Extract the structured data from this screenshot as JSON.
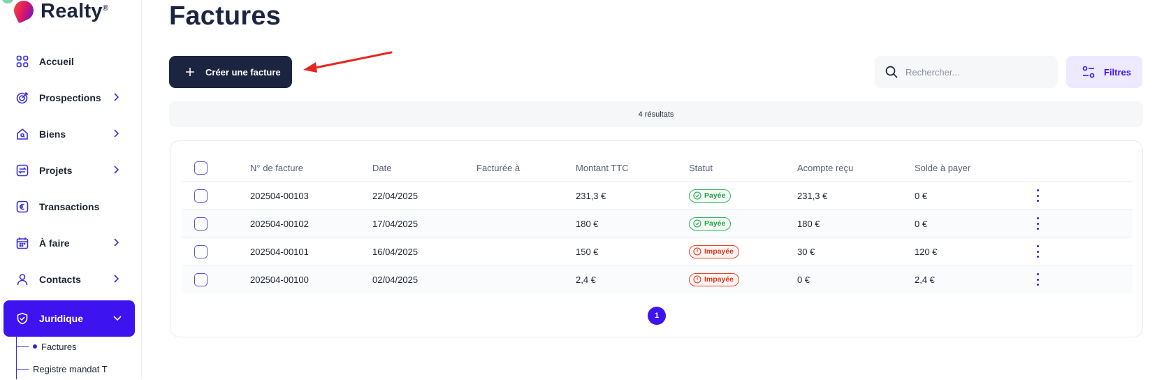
{
  "brand": {
    "name": "Realty",
    "trademark": "®"
  },
  "colors": {
    "primary": "#3d13ef",
    "dark": "#1c2540",
    "paid": "#21a04b",
    "unpaid": "#d63a1e",
    "annotation_arrow": "#e5261f"
  },
  "sidebar": {
    "items": [
      {
        "label": "Accueil",
        "icon": "grid-icon",
        "has_chevron": false
      },
      {
        "label": "Prospections",
        "icon": "target-icon",
        "has_chevron": true
      },
      {
        "label": "Biens",
        "icon": "house-icon",
        "has_chevron": true
      },
      {
        "label": "Projets",
        "icon": "swap-icon",
        "has_chevron": true
      },
      {
        "label": "Transactions",
        "icon": "euro-icon",
        "has_chevron": false
      },
      {
        "label": "À faire",
        "icon": "calendar-icon",
        "has_chevron": true
      },
      {
        "label": "Contacts",
        "icon": "user-icon",
        "has_chevron": true
      },
      {
        "label": "Juridique",
        "icon": "shield-icon",
        "has_chevron": true,
        "active": true
      }
    ],
    "subitems": [
      {
        "label": "Factures",
        "active": true
      },
      {
        "label": "Registre mandat T"
      }
    ]
  },
  "page": {
    "title": "Factures"
  },
  "toolbar": {
    "create_label": "Créer une facture",
    "search_placeholder": "Rechercher...",
    "filters_label": "Filtres"
  },
  "results_text": "4 résultats",
  "table": {
    "columns": [
      "N° de facture",
      "Date",
      "Facturée à",
      "Montant TTC",
      "Statut",
      "Acompte reçu",
      "Solde à payer"
    ],
    "rows": [
      {
        "number": "202504-00103",
        "date": "22/04/2025",
        "billed_to": "",
        "amount": "231,3 €",
        "status": "Payée",
        "status_type": "paid",
        "deposit": "231,3 €",
        "balance": "0 €"
      },
      {
        "number": "202504-00102",
        "date": "17/04/2025",
        "billed_to": "",
        "amount": "180 €",
        "status": "Payée",
        "status_type": "paid",
        "deposit": "180 €",
        "balance": "0 €"
      },
      {
        "number": "202504-00101",
        "date": "16/04/2025",
        "billed_to": "",
        "amount": "150 €",
        "status": "Impayée",
        "status_type": "unpaid",
        "deposit": "30 €",
        "balance": "120 €"
      },
      {
        "number": "202504-00100",
        "date": "02/04/2025",
        "billed_to": "",
        "amount": "2,4 €",
        "status": "Impayée",
        "status_type": "unpaid",
        "deposit": "0 €",
        "balance": "2,4 €"
      }
    ]
  },
  "pagination": {
    "current_page": "1"
  }
}
